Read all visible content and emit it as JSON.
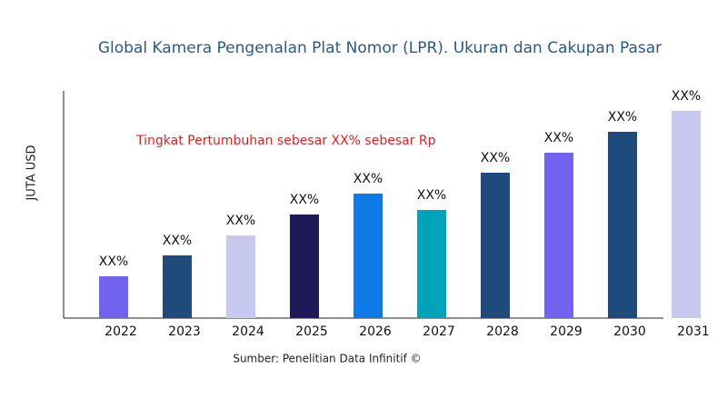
{
  "chart_data": {
    "type": "bar",
    "title": "Global Kamera Pengenalan Plat Nomor (LPR). Ukuran dan Cakupan Pasar",
    "y_label": "JUTA USD",
    "annotation": "Tingkat Pertumbuhan sebesar XX% sebesar Rp",
    "source": "Sumber: Penelitian Data Infinitif ©",
    "categories": [
      "2022",
      "2023",
      "2024",
      "2025",
      "2026",
      "2027",
      "2028",
      "2029",
      "2030",
      "2031"
    ],
    "values": [
      46,
      69,
      91,
      114,
      137,
      119,
      160,
      182,
      205,
      228
    ],
    "value_labels": [
      "XX%",
      "XX%",
      "XX%",
      "XX%",
      "XX%",
      "XX%",
      "XX%",
      "XX%",
      "XX%",
      "XX%"
    ],
    "colors": [
      "#7162f0",
      "#1f4a7c",
      "#c8c9f0",
      "#1e1a5a",
      "#0e7ae6",
      "#00a3b8",
      "#1f4a7c",
      "#7162f0",
      "#1f4a7c",
      "#c8c9f0"
    ],
    "ylim": [
      0,
      250
    ]
  }
}
